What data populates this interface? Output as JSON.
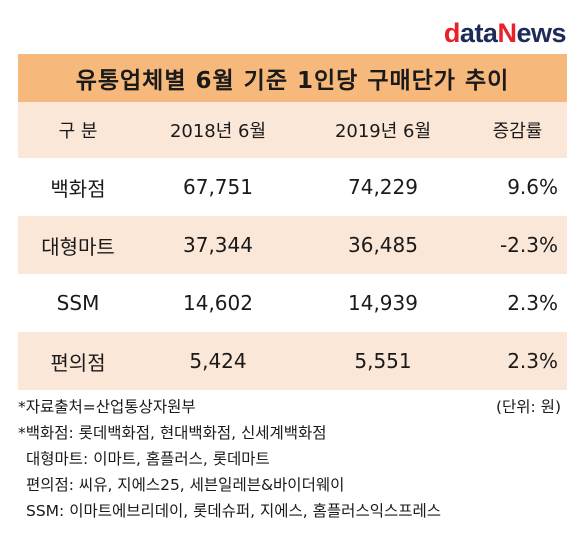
{
  "logo": {
    "d": "d",
    "ata": "ata",
    "n": "N",
    "ews": "ews"
  },
  "title": "유통업체별 6월 기준 1인당 구매단가 추이",
  "headers": [
    "구  분",
    "2018년 6월",
    "2019년 6월",
    "증감률"
  ],
  "rows": [
    {
      "name": "백화점",
      "y2018": "67,751",
      "y2019": "74,229",
      "change": "9.6%"
    },
    {
      "name": "대형마트",
      "y2018": "37,344",
      "y2019": "36,485",
      "change": "-2.3%"
    },
    {
      "name": "SSM",
      "y2018": "14,602",
      "y2019": "14,939",
      "change": "2.3%"
    },
    {
      "name": "편의점",
      "y2018": "5,424",
      "y2019": "5,551",
      "change": "2.3%"
    }
  ],
  "notes": {
    "source": "*자료출처=산업통상자원부",
    "unit": "(단위: 원)",
    "dept": "*백화점: 롯데백화점, 현대백화점, 신세계백화점",
    "mart": "대형마트: 이마트, 홈플러스, 롯데마트",
    "conv": "편의점: 씨유, 지에스25, 세븐일레븐&바이더웨이",
    "ssm": "SSM: 이마트에브리데이, 롯데슈퍼, 지에스, 홈플러스익스프레스"
  }
}
